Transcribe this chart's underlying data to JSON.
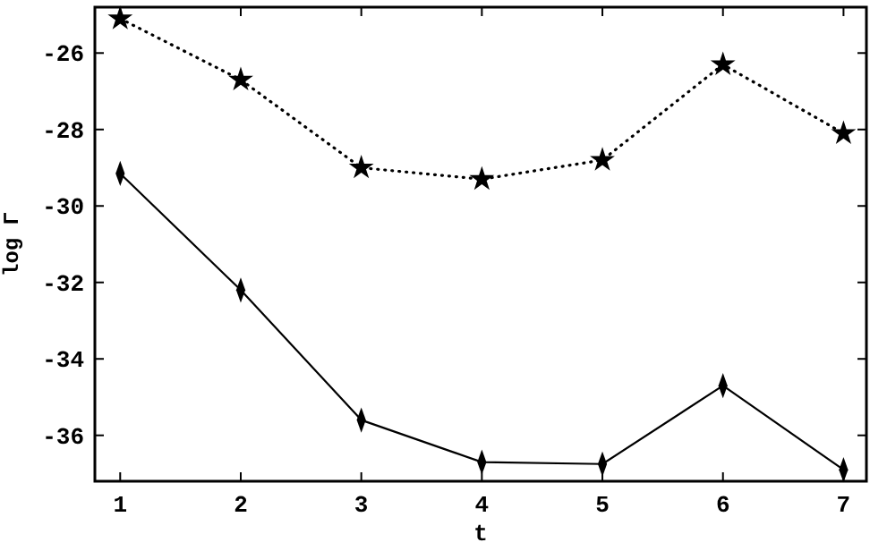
{
  "chart_data": {
    "type": "line",
    "xlabel": "t",
    "ylabel": "log Γ",
    "x": [
      1,
      2,
      3,
      4,
      5,
      6,
      7
    ],
    "series": [
      {
        "color": "#000000",
        "marker": "star",
        "line_style": "dotted",
        "values": [
          -25.1,
          -26.7,
          -29.0,
          -29.3,
          -28.8,
          -26.3,
          -28.1
        ]
      },
      {
        "color": "#000000",
        "marker": "diamond",
        "line_style": "solid",
        "values": [
          -29.15,
          -32.2,
          -35.6,
          -36.7,
          -36.75,
          -34.7,
          -36.9
        ]
      }
    ],
    "xlim": [
      0.79,
      7.19
    ],
    "xticks": [
      1,
      2,
      3,
      4,
      5,
      6,
      7
    ],
    "ylim": [
      -37.2,
      -24.8
    ],
    "yticks": [
      -36,
      -34,
      -32,
      -30,
      -28,
      -26
    ],
    "grid": false
  }
}
